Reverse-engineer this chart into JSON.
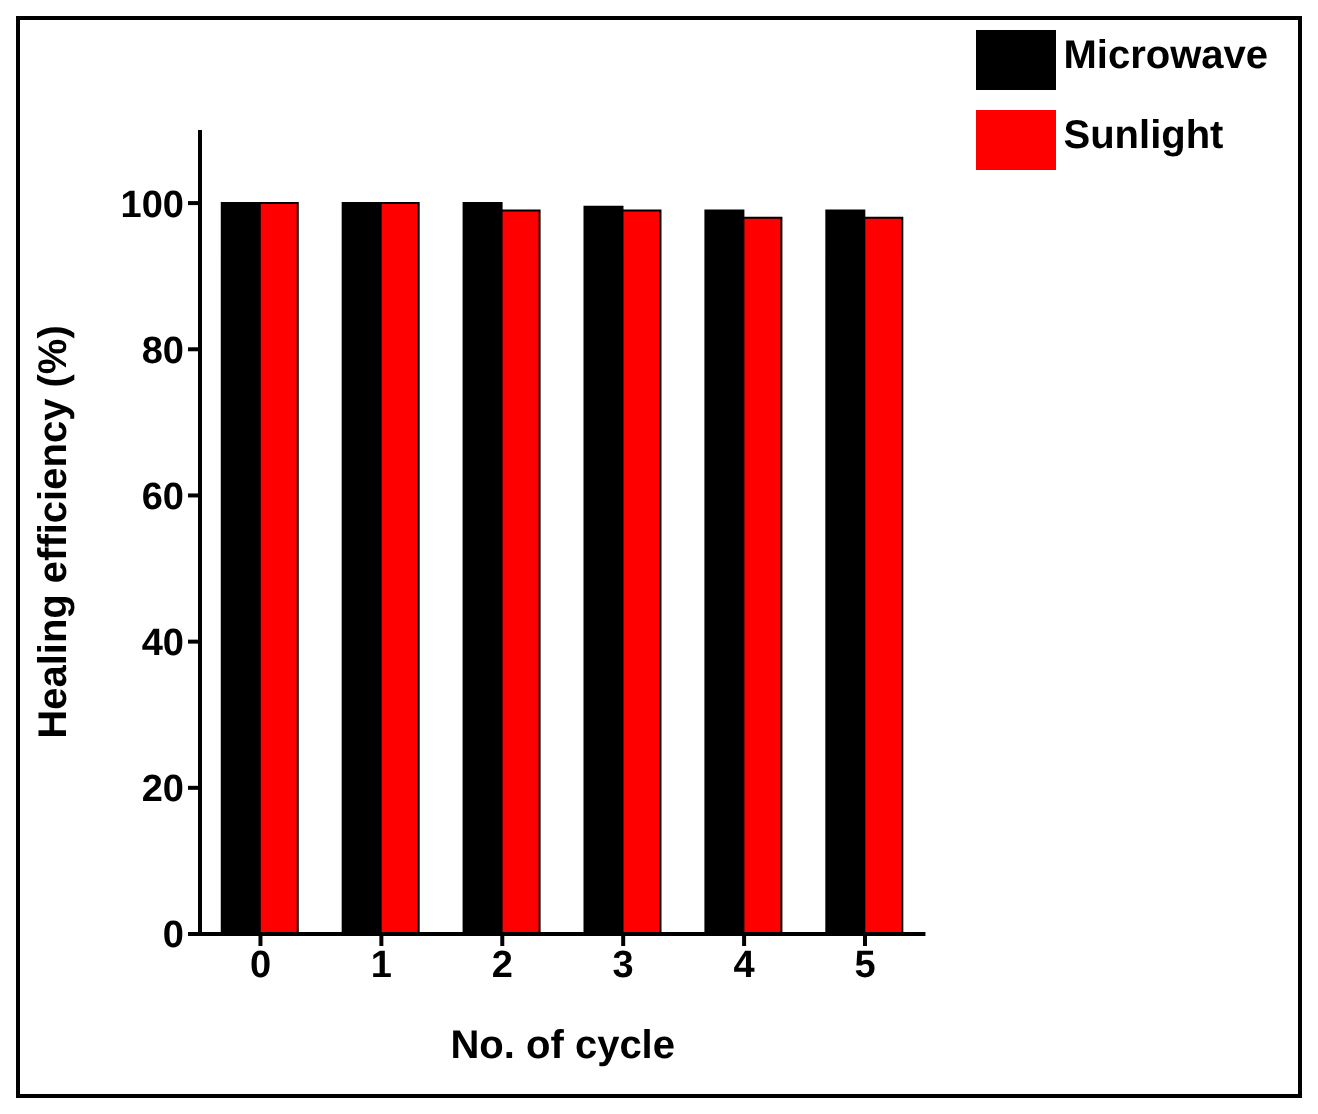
{
  "chart_data": {
    "type": "bar",
    "xlabel": "No. of cycle",
    "ylabel": "Healing efficiency (%)",
    "categories": [
      "0",
      "1",
      "2",
      "3",
      "4",
      "5"
    ],
    "series": [
      {
        "name": "Microwave",
        "color": "#000000",
        "values": [
          100,
          100,
          100,
          99.5,
          99,
          99
        ]
      },
      {
        "name": "Sunlight",
        "color": "#ff0000",
        "values": [
          100,
          100,
          99,
          99,
          98,
          98
        ]
      }
    ],
    "ylim": [
      0,
      110
    ],
    "yticks": [
      0,
      20,
      40,
      60,
      80,
      100
    ],
    "grid": false,
    "legend": "top right"
  }
}
